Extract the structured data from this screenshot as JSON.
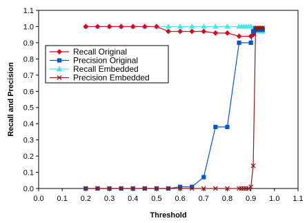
{
  "chart_data": {
    "type": "line",
    "title": "",
    "xlabel": "Threshold",
    "ylabel": "Recall and Precision",
    "xlim": [
      0.0,
      1.1
    ],
    "ylim": [
      0.0,
      1.1
    ],
    "xticks": [
      "0.0",
      "0.1",
      "0.2",
      "0.3",
      "0.4",
      "0.5",
      "0.6",
      "0.7",
      "0.8",
      "0.9",
      "1.0",
      "1.1"
    ],
    "yticks": [
      "0.0",
      "0.1",
      "0.2",
      "0.3",
      "0.4",
      "0.5",
      "0.6",
      "0.7",
      "0.8",
      "0.9",
      "1.0",
      "1.1"
    ],
    "grid": false,
    "legend_position": "upper-left inside plot",
    "series": [
      {
        "name": "Recall Original",
        "color": "#e4001b",
        "marker": "diamond",
        "x": [
          0.2,
          0.25,
          0.3,
          0.35,
          0.4,
          0.45,
          0.5,
          0.55,
          0.6,
          0.65,
          0.7,
          0.75,
          0.8,
          0.85,
          0.9,
          0.91,
          0.92,
          0.93,
          0.94,
          0.95
        ],
        "y": [
          1.0,
          1.0,
          1.0,
          1.0,
          1.0,
          1.0,
          1.0,
          0.97,
          0.97,
          0.97,
          0.97,
          0.96,
          0.96,
          0.94,
          0.94,
          0.95,
          0.99,
          0.99,
          0.99,
          0.99
        ]
      },
      {
        "name": "Precision Original",
        "color": "#0055d4",
        "marker": "square",
        "x": [
          0.2,
          0.25,
          0.3,
          0.35,
          0.4,
          0.45,
          0.5,
          0.55,
          0.6,
          0.65,
          0.7,
          0.75,
          0.8,
          0.85,
          0.9,
          0.91,
          0.92,
          0.93,
          0.94,
          0.95
        ],
        "y": [
          0.0,
          0.0,
          0.0,
          0.0,
          0.0,
          0.0,
          0.0,
          0.0,
          0.01,
          0.01,
          0.07,
          0.38,
          0.38,
          0.9,
          0.9,
          0.97,
          0.98,
          0.98,
          0.98,
          0.98
        ]
      },
      {
        "name": "Recall Embedded",
        "color": "#4fe3f0",
        "marker": "triangle",
        "x": [
          0.2,
          0.25,
          0.3,
          0.35,
          0.4,
          0.45,
          0.5,
          0.55,
          0.6,
          0.65,
          0.7,
          0.75,
          0.8,
          0.85,
          0.86,
          0.87,
          0.88,
          0.89,
          0.9,
          0.91,
          0.92,
          0.93,
          0.94,
          0.95
        ],
        "y": [
          1.0,
          1.0,
          1.0,
          1.0,
          1.0,
          1.0,
          1.0,
          1.0,
          1.0,
          1.0,
          1.0,
          1.0,
          1.0,
          1.0,
          1.0,
          1.0,
          1.0,
          1.0,
          1.0,
          0.99,
          0.98,
          0.97,
          0.97,
          0.97
        ]
      },
      {
        "name": "Precision Embedded",
        "color": "#8b1a1a",
        "marker": "x",
        "x": [
          0.2,
          0.25,
          0.3,
          0.35,
          0.4,
          0.45,
          0.5,
          0.55,
          0.6,
          0.65,
          0.7,
          0.75,
          0.8,
          0.85,
          0.86,
          0.87,
          0.88,
          0.89,
          0.9,
          0.91,
          0.92,
          0.93,
          0.94,
          0.95
        ],
        "y": [
          0.0,
          0.0,
          0.0,
          0.0,
          0.0,
          0.0,
          0.0,
          0.0,
          0.0,
          0.0,
          0.0,
          0.0,
          0.0,
          0.0,
          0.0,
          0.0,
          0.0,
          0.0,
          0.01,
          0.14,
          0.99,
          0.99,
          0.99,
          0.99
        ]
      }
    ]
  }
}
